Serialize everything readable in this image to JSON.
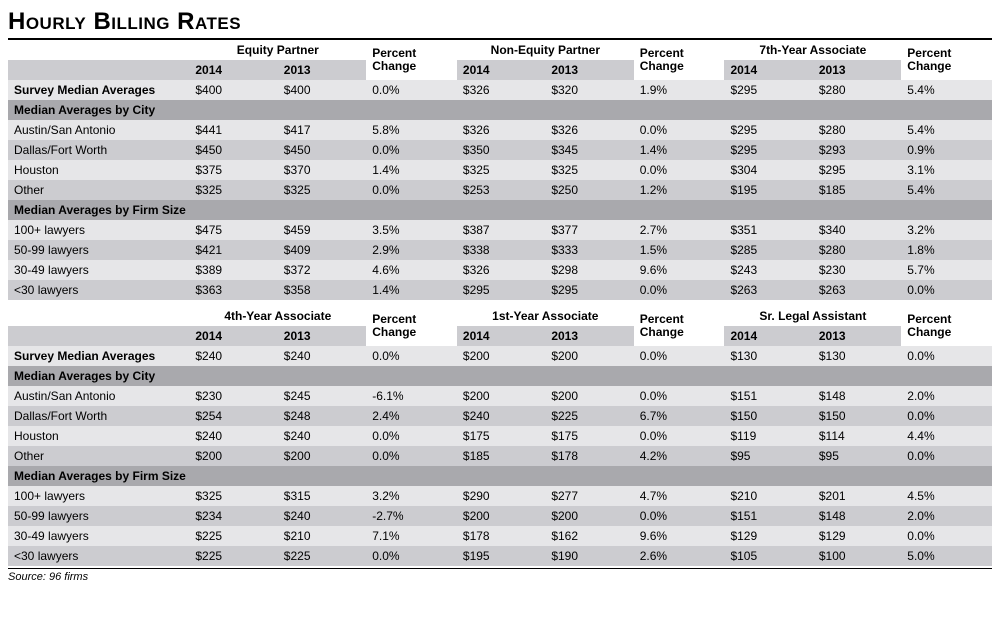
{
  "title": "Hourly Billing Rates",
  "source": "Source: 96 firms",
  "labels": {
    "percent_change": "Percent Change",
    "survey_median": "Survey Median Averages",
    "by_city": "Median Averages by City",
    "by_size": "Median Averages by Firm Size"
  },
  "years": {
    "a": "2014",
    "b": "2013"
  },
  "groups_top": [
    {
      "name": "Equity Partner"
    },
    {
      "name": "Non-Equity Partner"
    },
    {
      "name": "7th-Year Associate"
    }
  ],
  "groups_bottom": [
    {
      "name": "4th-Year Associate"
    },
    {
      "name": "1st-Year Associate"
    },
    {
      "name": "Sr. Legal Assistant"
    }
  ],
  "city_labels": [
    "Austin/San Antonio",
    "Dallas/Fort Worth",
    "Houston",
    "Other"
  ],
  "size_labels": [
    "100+ lawyers",
    "50-99 lawyers",
    "30-49 lawyers",
    "<30 lawyers"
  ],
  "top": {
    "survey": [
      [
        "$400",
        "$400",
        "0.0%"
      ],
      [
        "$326",
        "$320",
        "1.9%"
      ],
      [
        "$295",
        "$280",
        "5.4%"
      ]
    ],
    "city": [
      [
        [
          "$441",
          "$417",
          "5.8%"
        ],
        [
          "$326",
          "$326",
          "0.0%"
        ],
        [
          "$295",
          "$280",
          "5.4%"
        ]
      ],
      [
        [
          "$450",
          "$450",
          "0.0%"
        ],
        [
          "$350",
          "$345",
          "1.4%"
        ],
        [
          "$295",
          "$293",
          "0.9%"
        ]
      ],
      [
        [
          "$375",
          "$370",
          "1.4%"
        ],
        [
          "$325",
          "$325",
          "0.0%"
        ],
        [
          "$304",
          "$295",
          "3.1%"
        ]
      ],
      [
        [
          "$325",
          "$325",
          "0.0%"
        ],
        [
          "$253",
          "$250",
          "1.2%"
        ],
        [
          "$195",
          "$185",
          "5.4%"
        ]
      ]
    ],
    "size": [
      [
        [
          "$475",
          "$459",
          "3.5%"
        ],
        [
          "$387",
          "$377",
          "2.7%"
        ],
        [
          "$351",
          "$340",
          "3.2%"
        ]
      ],
      [
        [
          "$421",
          "$409",
          "2.9%"
        ],
        [
          "$338",
          "$333",
          "1.5%"
        ],
        [
          "$285",
          "$280",
          "1.8%"
        ]
      ],
      [
        [
          "$389",
          "$372",
          "4.6%"
        ],
        [
          "$326",
          "$298",
          "9.6%"
        ],
        [
          "$243",
          "$230",
          "5.7%"
        ]
      ],
      [
        [
          "$363",
          "$358",
          "1.4%"
        ],
        [
          "$295",
          "$295",
          "0.0%"
        ],
        [
          "$263",
          "$263",
          "0.0%"
        ]
      ]
    ]
  },
  "bottom": {
    "survey": [
      [
        "$240",
        "$240",
        "0.0%"
      ],
      [
        "$200",
        "$200",
        "0.0%"
      ],
      [
        "$130",
        "$130",
        "0.0%"
      ]
    ],
    "city": [
      [
        [
          "$230",
          "$245",
          "-6.1%"
        ],
        [
          "$200",
          "$200",
          "0.0%"
        ],
        [
          "$151",
          "$148",
          "2.0%"
        ]
      ],
      [
        [
          "$254",
          "$248",
          "2.4%"
        ],
        [
          "$240",
          "$225",
          "6.7%"
        ],
        [
          "$150",
          "$150",
          "0.0%"
        ]
      ],
      [
        [
          "$240",
          "$240",
          "0.0%"
        ],
        [
          "$175",
          "$175",
          "0.0%"
        ],
        [
          "$119",
          "$114",
          "4.4%"
        ]
      ],
      [
        [
          "$200",
          "$200",
          "0.0%"
        ],
        [
          "$185",
          "$178",
          "4.2%"
        ],
        [
          "$95",
          "$95",
          "0.0%"
        ]
      ]
    ],
    "size": [
      [
        [
          "$325",
          "$315",
          "3.2%"
        ],
        [
          "$290",
          "$277",
          "4.7%"
        ],
        [
          "$210",
          "$201",
          "4.5%"
        ]
      ],
      [
        [
          "$234",
          "$240",
          "-2.7%"
        ],
        [
          "$200",
          "$200",
          "0.0%"
        ],
        [
          "$151",
          "$148",
          "2.0%"
        ]
      ],
      [
        [
          "$225",
          "$210",
          "7.1%"
        ],
        [
          "$178",
          "$162",
          "9.6%"
        ],
        [
          "$129",
          "$129",
          "0.0%"
        ]
      ],
      [
        [
          "$225",
          "$225",
          "0.0%"
        ],
        [
          "$195",
          "$190",
          "2.6%"
        ],
        [
          "$105",
          "$100",
          "5.0%"
        ]
      ]
    ]
  },
  "style": {
    "row_shades": {
      "dark": "#a9a9ad",
      "medium": "#ccccd0",
      "light": "#e6e6e8"
    },
    "text_color": "#000000",
    "title_fontsize": 24,
    "body_fontsize": 12
  }
}
